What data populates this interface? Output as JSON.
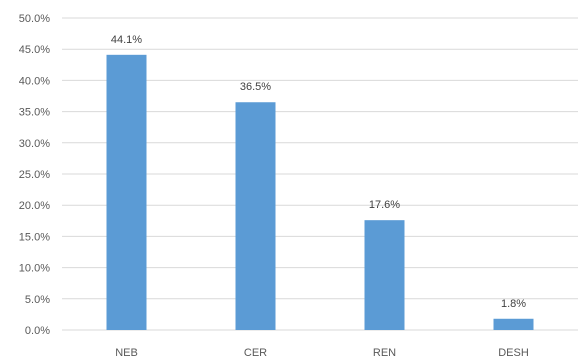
{
  "chart_data": {
    "type": "bar",
    "title": "",
    "xlabel": "",
    "ylabel": "",
    "categories": [
      "NEB",
      "CER",
      "REN",
      "DESH"
    ],
    "values": [
      44.1,
      36.5,
      17.6,
      1.8
    ],
    "value_labels": [
      "44.1%",
      "36.5%",
      "17.6%",
      "1.8%"
    ],
    "ylim": [
      0,
      50
    ],
    "yticks": [
      0,
      5,
      10,
      15,
      20,
      25,
      30,
      35,
      40,
      45,
      50
    ],
    "ytick_labels": [
      "0.0%",
      "5.0%",
      "10.0%",
      "15.0%",
      "20.0%",
      "25.0%",
      "30.0%",
      "35.0%",
      "40.0%",
      "45.0%",
      "50.0%"
    ],
    "grid": true,
    "legend": "none",
    "bar_color": "#5B9BD5",
    "grid_color": "#d9d9d9"
  }
}
